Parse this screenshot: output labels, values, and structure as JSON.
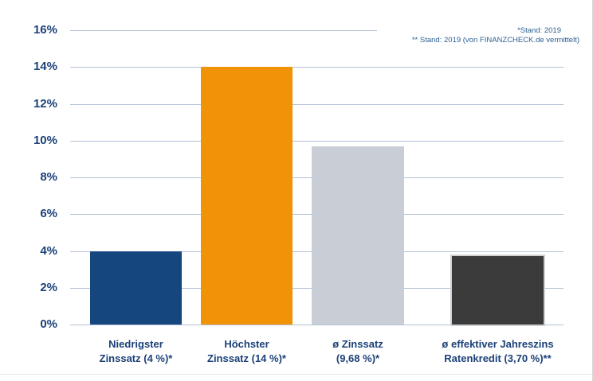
{
  "chart_data": {
    "type": "bar",
    "title": "",
    "xlabel": "",
    "ylabel": "",
    "categories": [
      "Niedrigster Zinssatz (4 %)*",
      "Höchster Zinssatz (14 %)*",
      "ø Zinssatz (9,68 %)*",
      "ø effektiver Jahreszins Ratenkredit (3,70 %)**"
    ],
    "category_lines": [
      [
        "Niedrigster",
        "Zinssatz (4 %)*"
      ],
      [
        "Höchster",
        "Zinssatz (14 %)*"
      ],
      [
        "ø Zinssatz",
        "(9,68 %)*"
      ],
      [
        "ø effektiver Jahreszins",
        "Ratenkredit (3,70 %)**"
      ]
    ],
    "values": [
      4,
      14,
      9.68,
      3.7
    ],
    "value_labels": [
      "4 %",
      "14 %",
      "9,68 %",
      "3,70 %"
    ],
    "bar_colors": [
      "#15477E",
      "#F09306",
      "#C9CED6",
      "#3B3B3B"
    ],
    "y_ticks": [
      "0%",
      "2%",
      "4%",
      "6%",
      "8%",
      "10%",
      "12%",
      "14%",
      "16%"
    ],
    "ylim": [
      0,
      16
    ],
    "y_step": 2,
    "grid": true,
    "legend": "none",
    "annotations": [
      "*Stand: 2019",
      "** Stand: 2019 (von FINANZCHECK.de vermittelt)"
    ]
  },
  "colors": {
    "axis_text": "#1B4078",
    "gridline": "#B3C2D5",
    "annotation_text": "#2D6094",
    "background": "#FFFFFF",
    "divider": "#E4E4E4",
    "right_border": "#D8D8D8",
    "bar4_outline": "#CDD1D5"
  }
}
